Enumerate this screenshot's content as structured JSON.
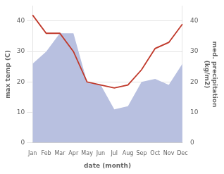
{
  "chart_data": {
    "type": "line",
    "xlabel": "date (month)",
    "ylabel": "max temp (C)",
    "y2label": "med. precipitation\n(kg/m2)",
    "categories": [
      "Jan",
      "Feb",
      "Mar",
      "Apr",
      "May",
      "Jun",
      "Jul",
      "Aug",
      "Sep",
      "Oct",
      "Nov",
      "Dec"
    ],
    "series": [
      {
        "type": "area",
        "color": "#b8c0e0",
        "values": [
          26,
          30,
          36,
          36,
          20,
          19,
          11,
          12,
          20,
          21,
          19,
          26
        ]
      },
      {
        "type": "line",
        "color": "#c0392b",
        "axis": "y2",
        "values": [
          42,
          36,
          36,
          30,
          20,
          19,
          18,
          19,
          24,
          31,
          33,
          39
        ]
      }
    ],
    "ylim": [
      0,
      45
    ],
    "yticks": [
      0,
      10,
      20,
      30,
      40
    ],
    "y2lim": [
      0,
      45
    ],
    "y2ticks": [
      0,
      10,
      20,
      30,
      40
    ],
    "grid": true
  }
}
